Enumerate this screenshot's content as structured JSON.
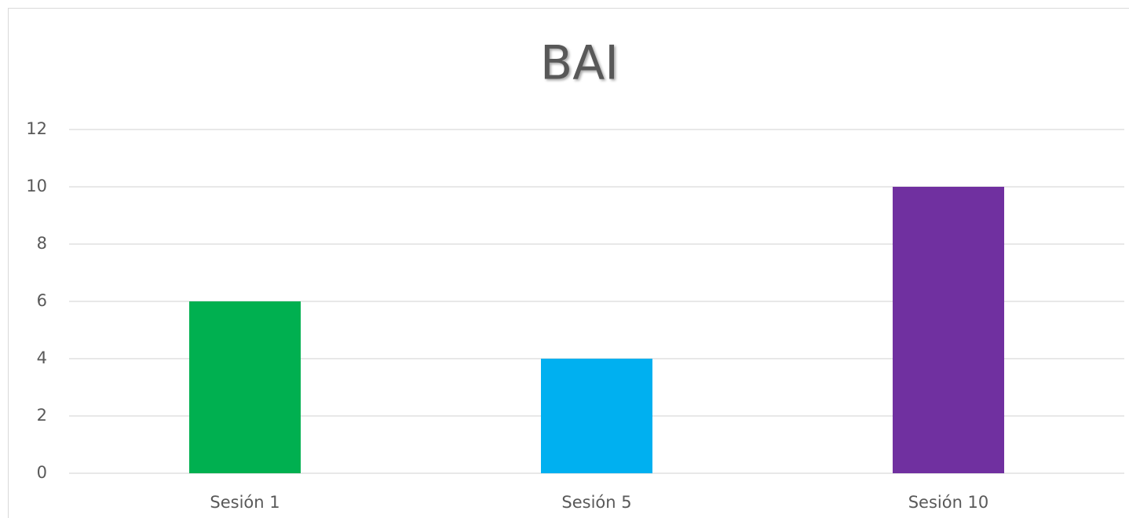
{
  "chart_data": {
    "type": "bar",
    "title": "BAI",
    "categories": [
      "Sesión 1",
      "Sesión 5",
      "Sesión 10"
    ],
    "values": [
      6,
      4,
      10
    ],
    "colors": [
      "#00b050",
      "#00b0f0",
      "#7030a0"
    ],
    "ylim": [
      0,
      12
    ],
    "yticks": [
      0,
      2,
      4,
      6,
      8,
      10,
      12
    ],
    "grid": true
  }
}
